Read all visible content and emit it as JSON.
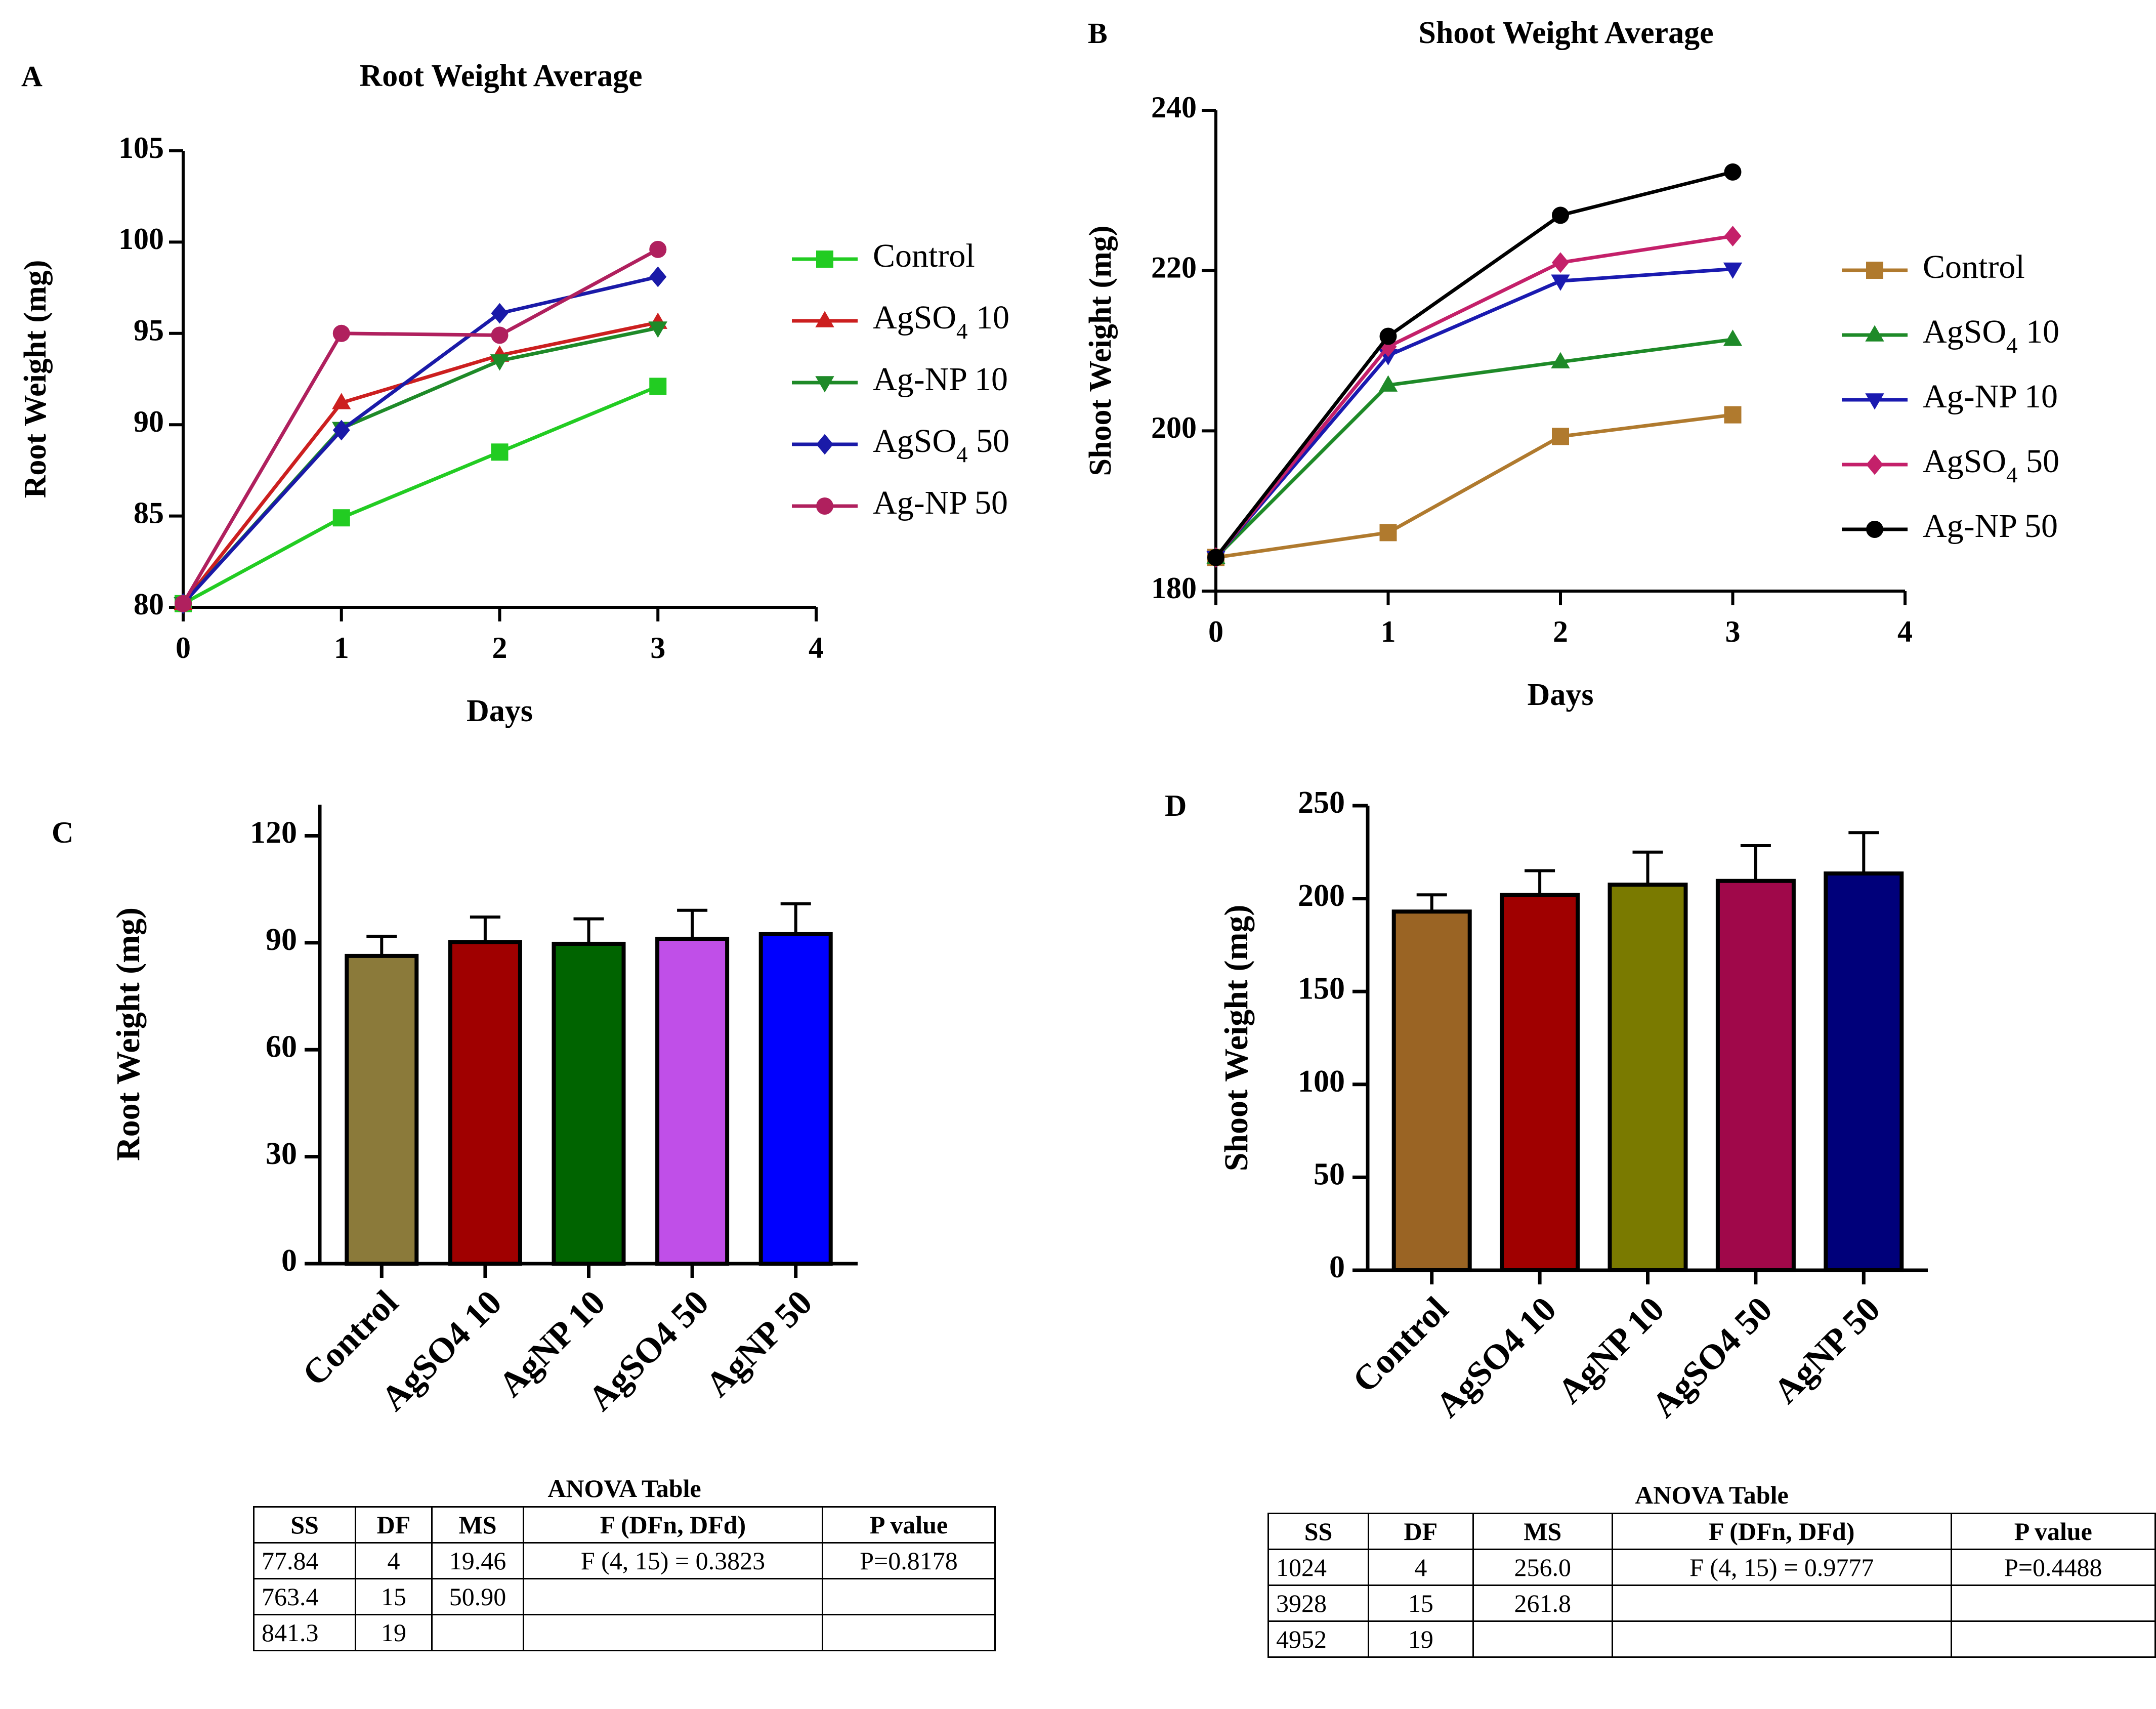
{
  "panels": {
    "a": "A",
    "b": "B",
    "c": "C",
    "d": "D"
  },
  "colors": {
    "line_control_a": "#22cc22",
    "line_agso4_10": "#cc1f1f",
    "line_agnp_10": "#1e8a28",
    "line_agso4_50": "#1a1aa8",
    "line_agnp_50": "#b0205e",
    "line_control_b": "#b07a2e",
    "line_agso4_10_b": "#1e8a28",
    "line_agnp_10_b": "#1a1ab0",
    "line_agso4_50_b": "#c4206a",
    "line_agnp_50_b": "#000000",
    "bar_c": [
      "#8b7a3a",
      "#a00000",
      "#006400",
      "#c04fe8",
      "#0000ff"
    ],
    "bar_d": [
      "#9a6424",
      "#a00000",
      "#7a7a00",
      "#a0084a",
      "#00007a"
    ]
  },
  "chart_data": [
    {
      "id": "A",
      "type": "line",
      "title": "Root Weight Average",
      "xlabel": "Days",
      "ylabel": "Root Weight (mg)",
      "xlim": [
        0,
        4
      ],
      "ylim": [
        80,
        105
      ],
      "xticks": [
        0,
        1,
        2,
        3,
        4
      ],
      "yticks": [
        80,
        85,
        90,
        95,
        100,
        105
      ],
      "x": [
        0,
        1,
        2,
        3
      ],
      "legend_position": "right",
      "series": [
        {
          "name": "Control",
          "sub": "",
          "suffix": "",
          "marker": "square",
          "values": [
            80.2,
            84.9,
            88.5,
            92.1
          ]
        },
        {
          "name": "AgSO",
          "sub": "4",
          "suffix": " 10",
          "marker": "triangle-up",
          "values": [
            80.2,
            91.2,
            93.8,
            95.6
          ]
        },
        {
          "name": "Ag-NP 10",
          "sub": "",
          "suffix": "",
          "marker": "triangle-down",
          "values": [
            80.2,
            89.8,
            93.5,
            95.3
          ]
        },
        {
          "name": "AgSO",
          "sub": "4",
          "suffix": " 50",
          "marker": "diamond",
          "values": [
            80.2,
            89.7,
            96.1,
            98.1
          ]
        },
        {
          "name": "Ag-NP 50",
          "sub": "",
          "suffix": "",
          "marker": "circle",
          "values": [
            80.2,
            95.0,
            94.9,
            99.6
          ]
        }
      ]
    },
    {
      "id": "B",
      "type": "line",
      "title": "Shoot Weight Average",
      "xlabel": "Days",
      "ylabel": "Shoot Weight (mg)",
      "xlim": [
        0,
        4
      ],
      "ylim": [
        180,
        240
      ],
      "xticks": [
        0,
        1,
        2,
        3,
        4
      ],
      "yticks": [
        180,
        200,
        220,
        240
      ],
      "x": [
        0,
        1,
        2,
        3
      ],
      "legend_position": "right",
      "series": [
        {
          "name": "Control",
          "sub": "",
          "suffix": "",
          "marker": "square",
          "values": [
            184.2,
            187.3,
            199.3,
            202.0
          ]
        },
        {
          "name": "AgSO",
          "sub": "4",
          "suffix": " 10",
          "marker": "triangle-up",
          "values": [
            184.2,
            205.7,
            208.6,
            211.4
          ]
        },
        {
          "name": "Ag-NP 10",
          "sub": "",
          "suffix": "",
          "marker": "triangle-down",
          "values": [
            184.2,
            209.4,
            218.7,
            220.2
          ]
        },
        {
          "name": "AgSO",
          "sub": "4",
          "suffix": " 50",
          "marker": "diamond",
          "values": [
            184.2,
            210.5,
            221.0,
            224.3
          ]
        },
        {
          "name": "Ag-NP 50",
          "sub": "",
          "suffix": "",
          "marker": "circle",
          "values": [
            184.2,
            211.8,
            226.9,
            232.3
          ]
        }
      ]
    },
    {
      "id": "C",
      "type": "bar",
      "title": "",
      "xlabel": "",
      "ylabel": "Root Weight (mg)",
      "ylim": [
        0,
        130
      ],
      "yticks": [
        0,
        30,
        60,
        90,
        120
      ],
      "categories": [
        "Control",
        "AgSO4 10",
        "AgNP 10",
        "AgSO4 50",
        "AgNP 50"
      ],
      "values": [
        86.3,
        90.2,
        89.7,
        91.1,
        92.4
      ],
      "errors": [
        5.5,
        7.0,
        7.0,
        8.0,
        8.5
      ]
    },
    {
      "id": "D",
      "type": "bar",
      "title": "",
      "xlabel": "",
      "ylabel": "Shoot Weight (mg)",
      "ylim": [
        0,
        250
      ],
      "yticks": [
        0,
        50,
        100,
        150,
        200,
        250
      ],
      "categories": [
        "Control",
        "AgSO4 10",
        "AgNP 10",
        "AgSO4 50",
        "AgNP 50"
      ],
      "values": [
        193.0,
        202.0,
        207.5,
        209.5,
        213.5
      ],
      "errors": [
        9.0,
        13.0,
        17.5,
        19.0,
        22.0
      ]
    }
  ],
  "anova_c": {
    "title": "ANOVA Table",
    "headers": [
      "SS",
      "DF",
      "MS",
      "F (DFn, DFd)",
      "P value"
    ],
    "rows": [
      [
        "77.84",
        "4",
        "19.46",
        "F (4, 15) = 0.3823",
        "P=0.8178"
      ],
      [
        "763.4",
        "15",
        "50.90",
        "",
        ""
      ],
      [
        "841.3",
        "19",
        "",
        "",
        ""
      ]
    ]
  },
  "anova_d": {
    "title": "ANOVA Table",
    "headers": [
      "SS",
      "DF",
      "MS",
      "F (DFn, DFd)",
      "P value"
    ],
    "rows": [
      [
        "1024",
        "4",
        "256.0",
        "F (4, 15) = 0.9777",
        "P=0.4488"
      ],
      [
        "3928",
        "15",
        "261.8",
        "",
        ""
      ],
      [
        "4952",
        "19",
        "",
        "",
        ""
      ]
    ]
  }
}
